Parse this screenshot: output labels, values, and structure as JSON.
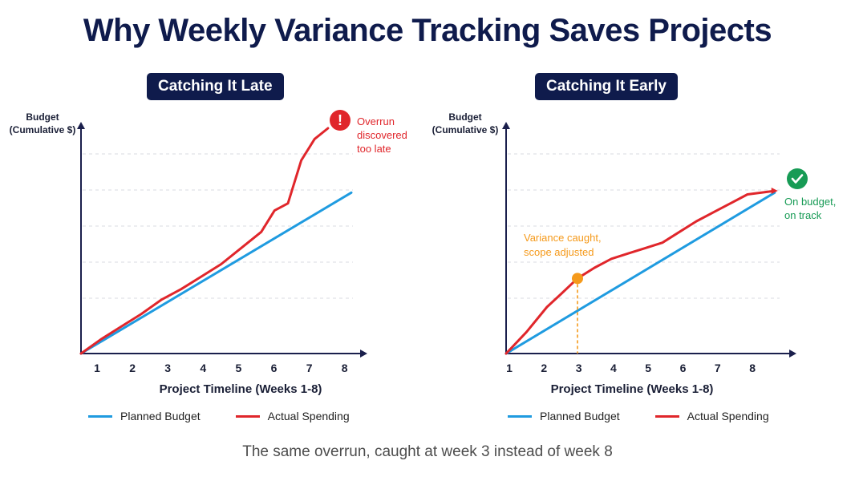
{
  "title": "Why Weekly Variance Tracking Saves Projects",
  "caption": "The same overrun, caught at week 3 instead of week 8",
  "colors": {
    "planned": "#1f9be0",
    "actual": "#e0262b",
    "warning": "#f59a1b",
    "success": "#179b55",
    "badge_bg": "#0f1b4c",
    "axis": "#1a1f4c"
  },
  "legend": {
    "planned": "Planned Budget",
    "actual": "Actual Spending"
  },
  "chart_data": [
    {
      "type": "line",
      "title": "Catching It Late",
      "xlabel": "Project Timeline (Weeks 1-8)",
      "ylabel_line1": "Budget",
      "ylabel_line2": "(Cumulative $)",
      "x_ticks": [
        "1",
        "2",
        "3",
        "4",
        "5",
        "6",
        "7",
        "8"
      ],
      "xlim": [
        0.6,
        8.7
      ],
      "ylim": [
        0,
        6.3
      ],
      "grid": "horizontal dashed",
      "series": [
        {
          "name": "Planned Budget",
          "x": [
            0.6,
            8.7
          ],
          "y": [
            0.0,
            4.5
          ]
        },
        {
          "name": "Actual Spending",
          "x": [
            0.6,
            1.2,
            1.8,
            2.4,
            3.0,
            3.6,
            4.2,
            4.8,
            5.4,
            6.0,
            6.4,
            6.8,
            7.2,
            7.6,
            8.0
          ],
          "y": [
            0.0,
            0.4,
            0.75,
            1.1,
            1.5,
            1.8,
            2.15,
            2.5,
            2.95,
            3.4,
            4.0,
            4.2,
            5.4,
            6.0,
            6.3
          ]
        }
      ],
      "annotation": {
        "lines": [
          "Overrun",
          "discovered",
          "too late"
        ],
        "x": 8.0,
        "y": 6.3,
        "icon": "exclamation-icon"
      }
    },
    {
      "type": "line",
      "title": "Catching It Early",
      "xlabel": "Project Timeline (Weeks 1-8)",
      "ylabel_line1": "Budget",
      "ylabel_line2": "(Cumulative $)",
      "x_ticks": [
        "1",
        "2",
        "3",
        "4",
        "5",
        "6",
        "7",
        "8"
      ],
      "xlim": [
        0.9,
        8.9
      ],
      "ylim": [
        0,
        6.3
      ],
      "grid": "horizontal dashed",
      "series": [
        {
          "name": "Planned Budget",
          "x": [
            0.9,
            8.8
          ],
          "y": [
            0.0,
            4.5
          ]
        },
        {
          "name": "Actual Spending",
          "x": [
            0.9,
            1.5,
            2.1,
            2.5,
            3.0,
            3.5,
            4.0,
            4.5,
            5.0,
            5.5,
            6.0,
            6.5,
            7.0,
            7.5,
            8.0,
            8.8
          ],
          "y": [
            0.0,
            0.6,
            1.3,
            1.65,
            2.1,
            2.4,
            2.65,
            2.8,
            2.95,
            3.1,
            3.4,
            3.7,
            3.95,
            4.2,
            4.45,
            4.55
          ]
        }
      ],
      "marker": {
        "x": 3.0,
        "y": 2.1,
        "lines": [
          "Variance caught,",
          "scope adjusted"
        ]
      },
      "annotation": {
        "lines": [
          "On budget,",
          "on track"
        ],
        "x": 8.8,
        "y": 4.55,
        "icon": "checkmark-icon"
      }
    }
  ]
}
